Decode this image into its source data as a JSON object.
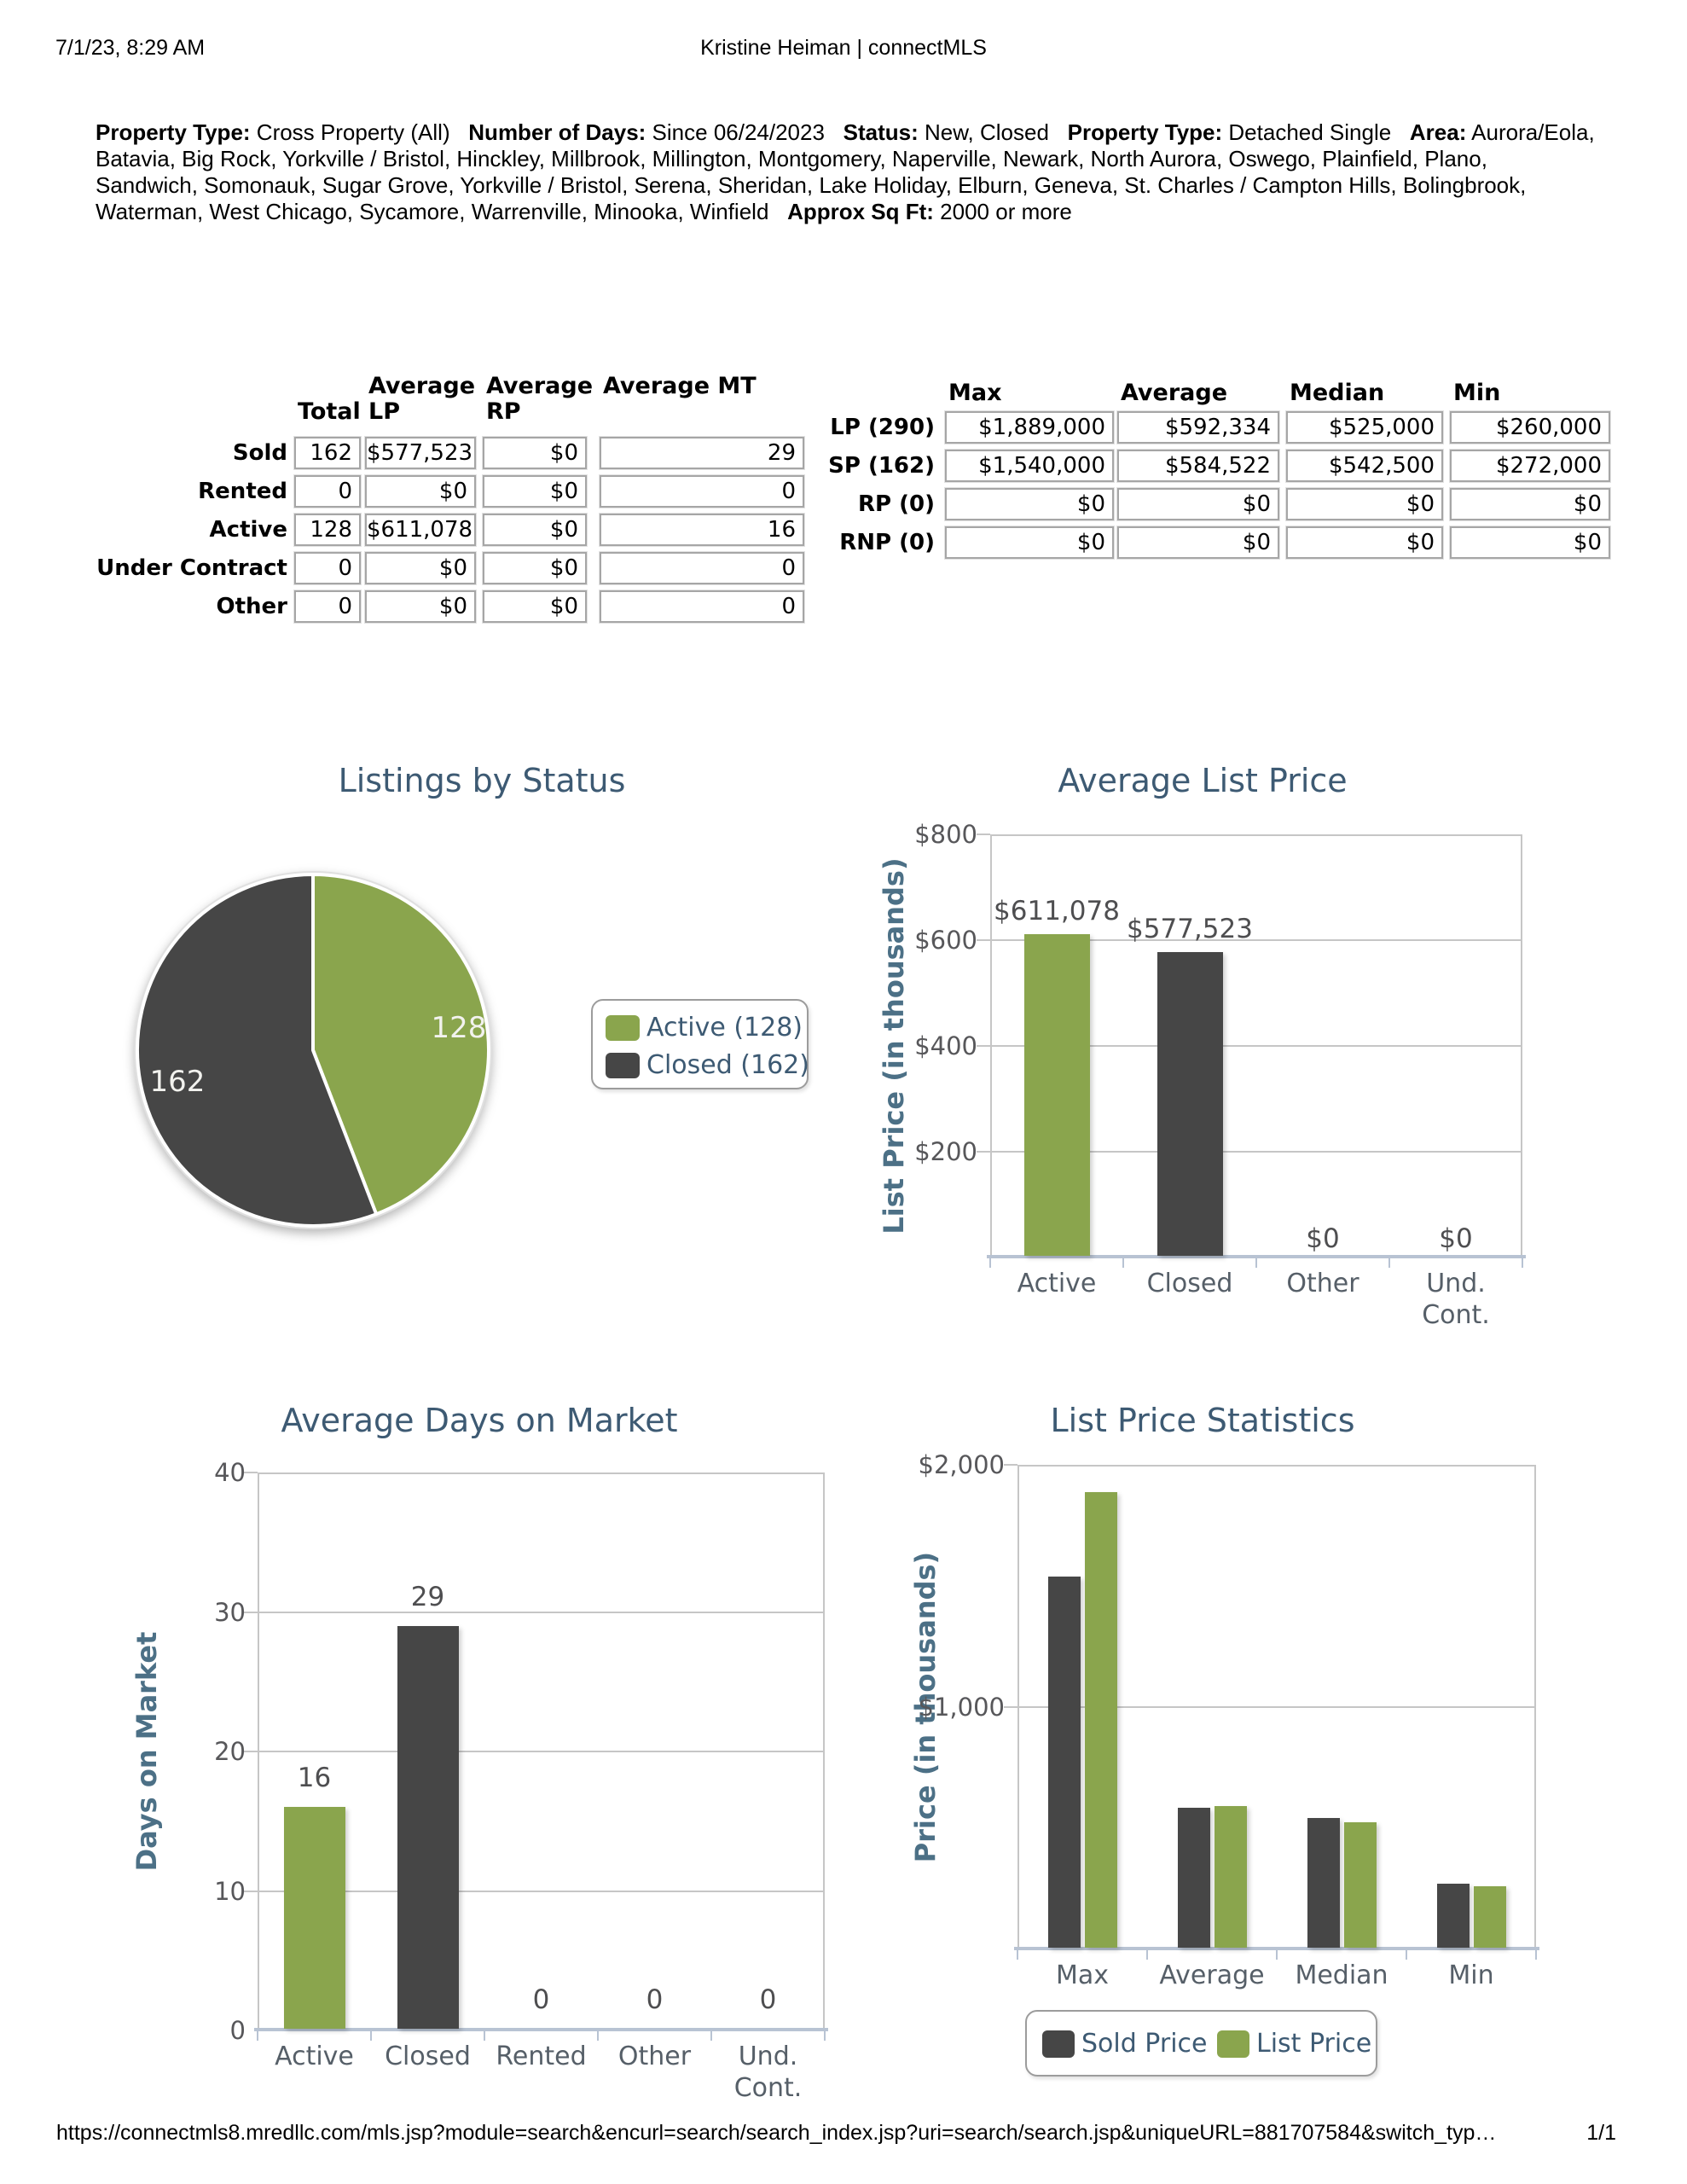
{
  "page": {
    "printed_datetime": "7/1/23, 8:29 AM",
    "header_title": "Kristine Heiman | connectMLS",
    "footer_url": "https://connectmls8.mredllc.com/mls.jsp?module=search&encurl=search/search_index.jsp?uri=search/search.jsp&uniqueURL=881707584&switch_typ…",
    "footer_page": "1/1"
  },
  "criteria": {
    "segments": [
      {
        "label": "Property Type:",
        "value": "Cross Property (All)"
      },
      {
        "label": "Number of Days:",
        "value": "Since 06/24/2023"
      },
      {
        "label": "Status:",
        "value": "New, Closed"
      },
      {
        "label": "Property Type:",
        "value": "Detached Single"
      },
      {
        "label": "Area:",
        "value": "Aurora/Eola, Batavia, Big Rock, Yorkville / Bristol, Hinckley, Millbrook, Millington, Montgomery, Naperville, Newark, North Aurora, Oswego, Plainfield, Plano, Sandwich, Somonauk, Sugar Grove, Yorkville / Bristol, Serena, Sheridan, Lake Holiday, Elburn, Geneva, St. Charles / Campton Hills, Bolingbrook, Waterman, West Chicago, Sycamore, Warrenville, Minooka, Winfield"
      },
      {
        "label": "Approx Sq Ft:",
        "value": "2000 or more"
      }
    ]
  },
  "summary_table": {
    "header_cells": [
      {
        "line1": "",
        "line2": "Total"
      },
      {
        "line1": "Average",
        "line2": "LP"
      },
      {
        "line1": "Average",
        "line2": "RP"
      },
      {
        "line1": "Average MT",
        "line2": ""
      }
    ],
    "rows": [
      {
        "label": "Sold",
        "cells": [
          "162",
          "$577,523",
          "$0",
          "29"
        ]
      },
      {
        "label": "Rented",
        "cells": [
          "0",
          "$0",
          "$0",
          "0"
        ]
      },
      {
        "label": "Active",
        "cells": [
          "128",
          "$611,078",
          "$0",
          "16"
        ]
      },
      {
        "label": "Under Contract",
        "cells": [
          "0",
          "$0",
          "$0",
          "0"
        ]
      },
      {
        "label": "Other",
        "cells": [
          "0",
          "$0",
          "$0",
          "0"
        ]
      }
    ]
  },
  "stats_table": {
    "header_cells": [
      "Max",
      "Average",
      "Median",
      "Min"
    ],
    "rows": [
      {
        "label": "LP (290)",
        "cells": [
          "$1,889,000",
          "$592,334",
          "$525,000",
          "$260,000"
        ]
      },
      {
        "label": "SP (162)",
        "cells": [
          "$1,540,000",
          "$584,522",
          "$542,500",
          "$272,000"
        ]
      },
      {
        "label": "RP (0)",
        "cells": [
          "$0",
          "$0",
          "$0",
          "$0"
        ]
      },
      {
        "label": "RNP (0)",
        "cells": [
          "$0",
          "$0",
          "$0",
          "$0"
        ]
      }
    ]
  },
  "colors": {
    "green": "#8AA54D",
    "dark": "#464646",
    "title": "#3D5A73",
    "axis_label": "#4C7086",
    "tick": "#57575A",
    "category": "#565F68",
    "data_label": "#4E4E50",
    "grid": "#C6C6C6",
    "axis_line": "#B8C3D3",
    "pie_label": "#F2F2EE",
    "legend_text": "#3D5A73"
  },
  "chart_data": [
    {
      "type": "pie",
      "title": "Listings by Status",
      "slices": [
        {
          "label": "Active",
          "value": 128,
          "color_key": "green",
          "data_label": "128",
          "legend_label": "Active (128)"
        },
        {
          "label": "Closed",
          "value": 162,
          "color_key": "dark",
          "data_label": "162",
          "legend_label": "Closed (162)"
        }
      ],
      "legend_position": "right"
    },
    {
      "type": "bar",
      "title": "Average List Price",
      "ylabel": "List Price (in thousands)",
      "xlabel": "",
      "categories": [
        "Active",
        "Closed",
        "Other",
        "Und.\nCont."
      ],
      "values": [
        611.078,
        577.523,
        0,
        0
      ],
      "bar_colors": [
        "green",
        "dark",
        null,
        null
      ],
      "bar_labels": [
        "$611,078",
        "$577,523",
        "$0",
        "$0"
      ],
      "ylim": [
        0,
        800
      ],
      "yticks": [
        {
          "value": 800,
          "label": "$800"
        },
        {
          "value": 600,
          "label": "$600"
        },
        {
          "value": 400,
          "label": "$400"
        },
        {
          "value": 200,
          "label": "$200"
        }
      ],
      "grid": true
    },
    {
      "type": "bar",
      "title": "Average Days on Market",
      "ylabel": "Days on Market",
      "xlabel": "",
      "categories": [
        "Active",
        "Closed",
        "Rented",
        "Other",
        "Und.\nCont."
      ],
      "values": [
        16,
        29,
        0,
        0,
        0
      ],
      "bar_colors": [
        "green",
        "dark",
        null,
        null,
        null
      ],
      "bar_labels": [
        "16",
        "29",
        "0",
        "0",
        "0"
      ],
      "ylim": [
        0,
        40
      ],
      "yticks": [
        {
          "value": 40,
          "label": "40"
        },
        {
          "value": 30,
          "label": "30"
        },
        {
          "value": 20,
          "label": "20"
        },
        {
          "value": 10,
          "label": "10"
        },
        {
          "value": 0,
          "label": "0"
        }
      ],
      "grid": true
    },
    {
      "type": "bar",
      "title": "List Price Statistics",
      "ylabel": "Price (in thousands)",
      "xlabel": "",
      "categories": [
        "Max",
        "Average",
        "Median",
        "Min"
      ],
      "series": [
        {
          "name": "Sold Price",
          "color_key": "dark",
          "values": [
            1540,
            584.522,
            542.5,
            272
          ]
        },
        {
          "name": "List Price",
          "color_key": "green",
          "values": [
            1889,
            592.334,
            525,
            260
          ]
        }
      ],
      "ylim": [
        0,
        2000
      ],
      "yticks": [
        {
          "value": 2000,
          "label": "$2,000"
        },
        {
          "value": 1000,
          "label": "$1,000"
        }
      ],
      "legend": [
        "Sold Price",
        "List Price"
      ],
      "legend_position": "bottom",
      "grid": true
    }
  ]
}
